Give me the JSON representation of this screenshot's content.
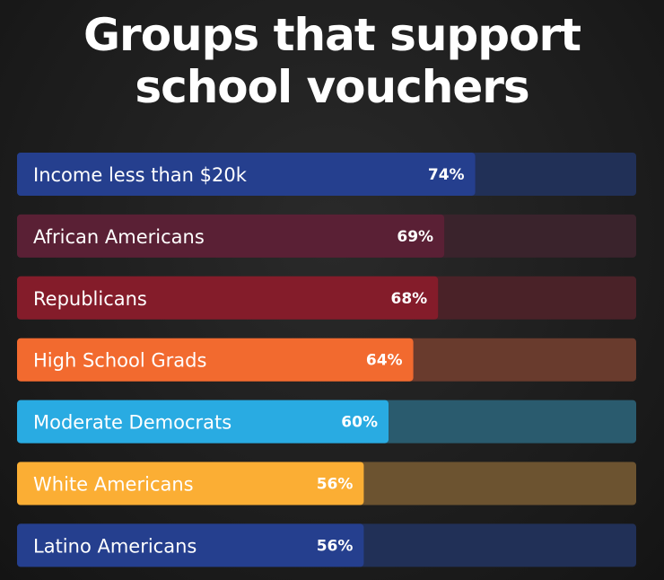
{
  "chart_data": {
    "type": "bar",
    "orientation": "horizontal",
    "title_lines": [
      "Groups that support",
      "school vouchers"
    ],
    "categories": [
      "Income less than $20k",
      "African Americans",
      "Republicans",
      "High School Grads",
      "Moderate Democrats",
      "White Americans",
      "Latino Americans"
    ],
    "values": [
      74,
      69,
      68,
      64,
      60,
      56,
      56
    ],
    "value_labels": [
      "74%",
      "69%",
      "68%",
      "64%",
      "60%",
      "56%",
      "56%"
    ],
    "xlim": [
      0,
      100
    ],
    "colors": [
      "#253f8e",
      "#5a2035",
      "#841c2a",
      "#f26a2f",
      "#29abe2",
      "#fbae34",
      "#253f8e"
    ],
    "track_colors": [
      "#213057",
      "#3a232c",
      "#4a2228",
      "#693b2d",
      "#2a5b6e",
      "#6c5330",
      "#213057"
    ],
    "grid": false,
    "legend": "none"
  }
}
